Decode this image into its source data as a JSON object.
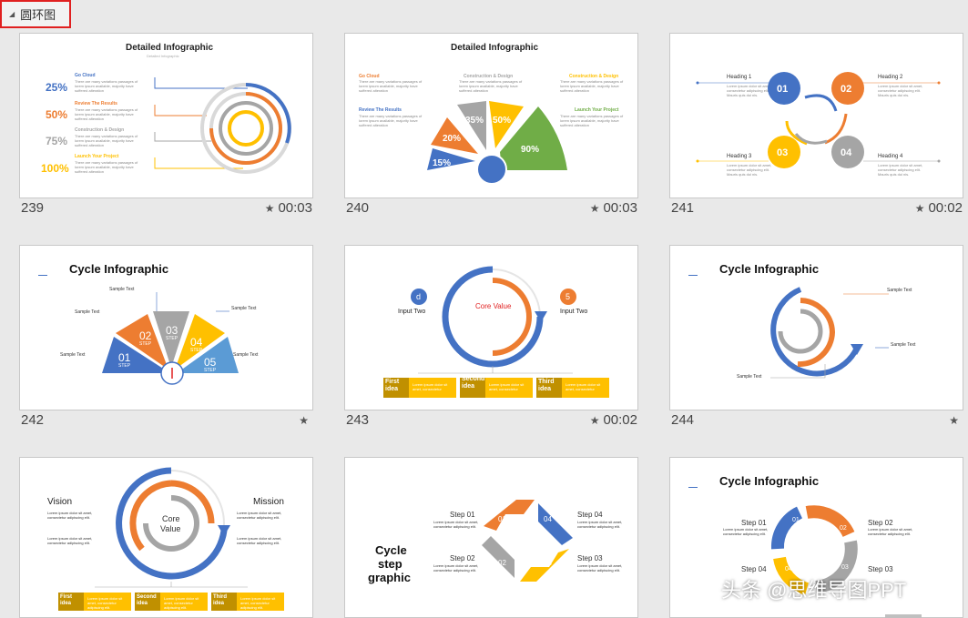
{
  "section": {
    "title": "圆环图"
  },
  "slides": [
    {
      "number": "239",
      "time": "00:03",
      "title": "Detailed Infographic",
      "subtitle": "Detailed Infographic",
      "items": [
        {
          "pct": "25%",
          "label": "Go Cloud",
          "color": "#4472c4"
        },
        {
          "pct": "50%",
          "label": "Review The Results",
          "color": "#ed7d31"
        },
        {
          "pct": "75%",
          "label": "Construction & Design",
          "color": "#a5a5a5"
        },
        {
          "pct": "100%",
          "label": "Launch Your Project",
          "color": "#ffc000"
        }
      ],
      "body": "There are many variations passages of lorem ipsum available, majority have suffered alteration"
    },
    {
      "number": "240",
      "time": "00:03",
      "title": "Detailed Infographic",
      "labels": [
        "Go Cloud",
        "Construction & Design",
        "Construction & Design",
        "Review The Results",
        "Launch Your Project"
      ],
      "values": [
        "15%",
        "20%",
        "35%",
        "50%",
        "90%"
      ],
      "body": "There are many variations passages of lorem ipsum available, majority have suffered alteration"
    },
    {
      "number": "241",
      "time": "00:02",
      "headings": [
        "Heading 1",
        "Heading 2",
        "Heading 3",
        "Heading 4"
      ],
      "nums": [
        "01",
        "02",
        "03",
        "04"
      ],
      "body": "Lorem ipsum dolor sit amet, consectetur adipiscing elit. Mauris quis dui nis."
    },
    {
      "number": "242",
      "time": "",
      "title": "Cycle Infographic",
      "sample": "Sample Text",
      "steps": [
        "01",
        "02",
        "03",
        "04",
        "05"
      ],
      "step_word": "STEP",
      "body": "Donec dapibus ac enim, pellentesque"
    },
    {
      "number": "243",
      "time": "00:02",
      "core": "Core Value",
      "left_badge": "d",
      "right_badge": "5",
      "left_title": "Input Two",
      "right_title": "Input Two",
      "ideas": [
        "First idea",
        "Second idea",
        "Third idea"
      ],
      "body": "Lorem ipsum dolor sit amet, consectetur"
    },
    {
      "number": "244",
      "time": "",
      "title": "Cycle Infographic",
      "sample": "Sample Text",
      "body": "Donec dapibus ac enim, pellentesque"
    },
    {
      "number": "",
      "time": "",
      "left_title": "Vision",
      "right_title": "Mission",
      "core_line1": "Core",
      "core_line2": "Value",
      "ideas": [
        "First idea",
        "Second idea",
        "Third idea"
      ],
      "body": "Lorem ipsum dolor sit amet, consectetur adipiscing elit."
    },
    {
      "number": "",
      "time": "",
      "title_lines": [
        "Cycle",
        "step",
        "graphic"
      ],
      "steps": [
        "Step 01",
        "Step 02",
        "Step 03",
        "Step 04"
      ],
      "nums": [
        "01",
        "02",
        "03",
        "04"
      ],
      "body": "Lorem ipsum dolor sit amet, consectetur adipiscing elit."
    },
    {
      "number": "",
      "time": "",
      "title": "Cycle Infographic",
      "steps": [
        "Step 01",
        "Step 02",
        "Step 03",
        "Step 04"
      ],
      "nums": [
        "01",
        "02",
        "03",
        "04"
      ],
      "body": "Lorem ipsum dolor sit amet, consectetur adipiscing elit."
    }
  ],
  "watermark": "头条 @思维导图PPT",
  "colors": {
    "blue": "#4472c4",
    "orange": "#ed7d31",
    "gray": "#a5a5a5",
    "yellow": "#ffc000",
    "green": "#70ad47",
    "gold": "#c09000",
    "red": "#e02020"
  }
}
